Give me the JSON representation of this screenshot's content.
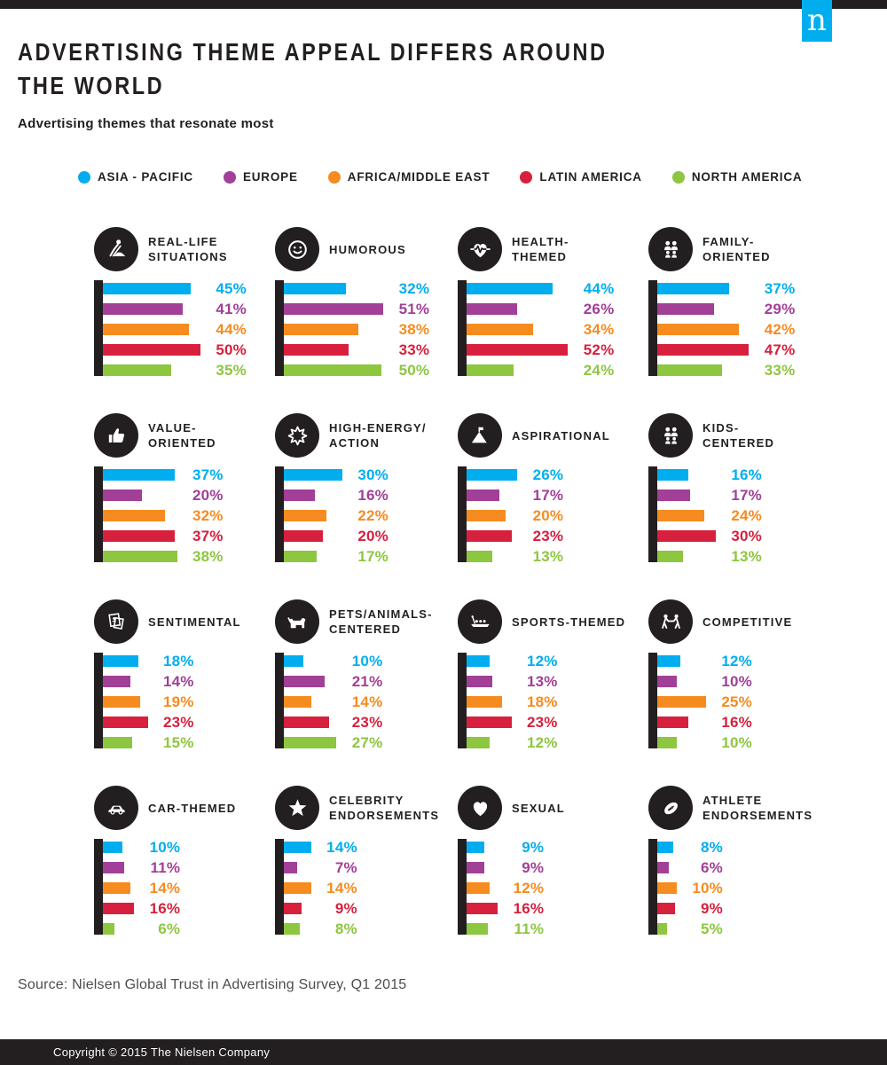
{
  "page": {
    "title_lines": [
      "ADVERTISING THEME APPEAL DIFFERS AROUND",
      "THE WORLD"
    ],
    "subtitle": "Advertising themes that resonate most",
    "logo_letter": "n"
  },
  "colors": {
    "ink": "#231F20",
    "logo_blue": "#00AEEF",
    "source_gray": "#4d4d4f"
  },
  "chart_data": {
    "type": "bar",
    "orientation": "horizontal",
    "unit": "%",
    "title": "ADVERTISING THEME APPEAL DIFFERS AROUND THE WORLD",
    "subtitle": "Advertising themes that resonate most",
    "legend_position": "top",
    "regions": [
      "ASIA - PACIFIC",
      "EUROPE",
      "AFRICA/MIDDLE EAST",
      "LATIN AMERICA",
      "NORTH AMERICA"
    ],
    "region_colors": [
      "#00AEEF",
      "#A23F97",
      "#F68B1F",
      "#D7203D",
      "#8DC63F"
    ],
    "themes": [
      {
        "title_lines": [
          "REAL-LIFE",
          "SITUATIONS"
        ],
        "icon": "worker-digging",
        "values": [
          45,
          41,
          44,
          50,
          35
        ]
      },
      {
        "title_lines": [
          "HUMOROUS"
        ],
        "icon": "smiley-face",
        "values": [
          32,
          51,
          38,
          33,
          50
        ]
      },
      {
        "title_lines": [
          "HEALTH-",
          "THEMED"
        ],
        "icon": "heart-pulse",
        "values": [
          44,
          26,
          34,
          52,
          24
        ]
      },
      {
        "title_lines": [
          "FAMILY-",
          "ORIENTED"
        ],
        "icon": "family",
        "values": [
          37,
          29,
          42,
          47,
          33
        ]
      },
      {
        "title_lines": [
          "VALUE-",
          "ORIENTED"
        ],
        "icon": "thumbs-up",
        "values": [
          37,
          20,
          32,
          37,
          38
        ]
      },
      {
        "title_lines": [
          "HIGH-ENERGY/",
          "ACTION"
        ],
        "icon": "starburst",
        "values": [
          30,
          16,
          22,
          20,
          17
        ]
      },
      {
        "title_lines": [
          "ASPIRATIONAL"
        ],
        "icon": "mountain-flag",
        "values": [
          26,
          17,
          20,
          23,
          13
        ]
      },
      {
        "title_lines": [
          "KIDS-",
          "CENTERED"
        ],
        "icon": "kids",
        "values": [
          16,
          17,
          24,
          30,
          13
        ]
      },
      {
        "title_lines": [
          "SENTIMENTAL"
        ],
        "icon": "photo-stack",
        "values": [
          18,
          14,
          19,
          23,
          15
        ]
      },
      {
        "title_lines": [
          "PETS/ANIMALS-",
          "CENTERED"
        ],
        "icon": "dog",
        "values": [
          10,
          21,
          14,
          23,
          27
        ]
      },
      {
        "title_lines": [
          "SPORTS-THEMED"
        ],
        "icon": "rowing",
        "values": [
          12,
          13,
          18,
          23,
          12
        ]
      },
      {
        "title_lines": [
          "COMPETITIVE"
        ],
        "icon": "tug-of-war",
        "values": [
          12,
          10,
          25,
          16,
          10
        ]
      },
      {
        "title_lines": [
          "CAR-THEMED"
        ],
        "icon": "car",
        "values": [
          10,
          11,
          14,
          16,
          6
        ]
      },
      {
        "title_lines": [
          "CELEBRITY",
          "ENDORSEMENTS"
        ],
        "icon": "star",
        "values": [
          14,
          7,
          14,
          9,
          8
        ]
      },
      {
        "title_lines": [
          "SEXUAL"
        ],
        "icon": "heart",
        "values": [
          9,
          9,
          12,
          16,
          11
        ]
      },
      {
        "title_lines": [
          "ATHLETE",
          "ENDORSEMENTS"
        ],
        "icon": "football",
        "values": [
          8,
          6,
          10,
          9,
          5
        ]
      }
    ]
  },
  "footer": {
    "source": "Source: Nielsen Global Trust in Advertising Survey, Q1 2015",
    "copyright": "Copyright © 2015 The Nielsen Company"
  }
}
